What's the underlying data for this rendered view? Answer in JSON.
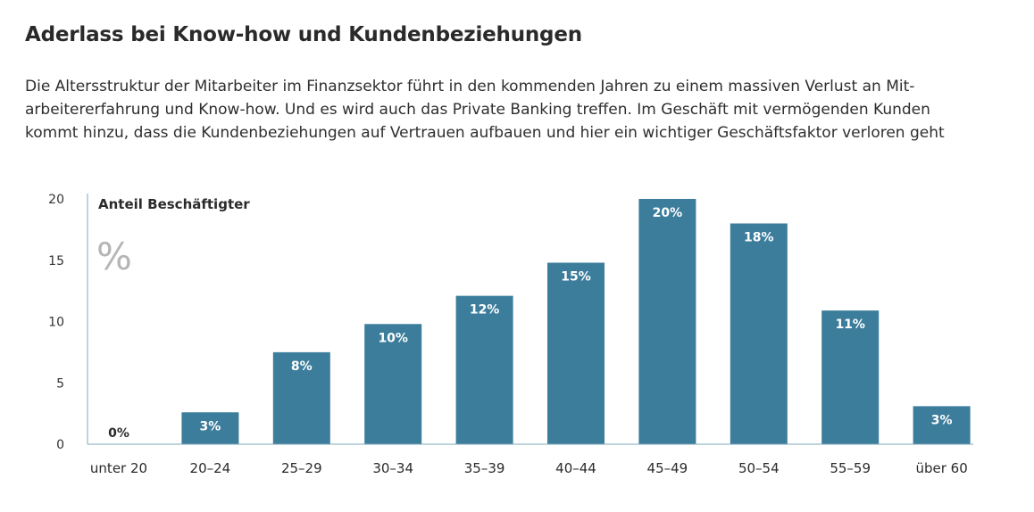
{
  "header": {
    "title": "Aderlass bei Know-how und Kundenbeziehungen",
    "subtitle_lines": [
      "Die Altersstruktur der Mitarbeiter im Finanzsektor führt in den kommenden Jahren zu einem massiven Verlust an Mit-",
      "arbeitererfahrung und Know-how. Und es wird auch das Private Banking treffen. Im Geschäft mit vermögenden Kunden",
      "kommt hinzu, dass die Kundenbeziehungen auf Vertrauen aufbauen und hier ein wichtiger Geschäftsfaktor verloren geht"
    ]
  },
  "colors": {
    "bar": "#3c7d9c",
    "axis": "#7fa7bb",
    "label_inside": "#ffffff",
    "label_outside": "#2b2b2b"
  },
  "chart_data": {
    "type": "bar",
    "ylabel": "Anteil Beschäftigter",
    "unit": "%",
    "categories": [
      "unter 20",
      "20–24",
      "25–29",
      "30–34",
      "35–39",
      "40–44",
      "45–49",
      "50–54",
      "55–59",
      "über 60"
    ],
    "values": [
      0,
      2.6,
      7.5,
      9.8,
      12.1,
      14.8,
      20,
      18,
      10.9,
      3.1
    ],
    "data_labels": [
      "0%",
      "3%",
      "8%",
      "10%",
      "12%",
      "15%",
      "20%",
      "18%",
      "11%",
      "3%"
    ],
    "ylim": [
      0,
      20
    ],
    "yticks": [
      0,
      5,
      10,
      15,
      20
    ],
    "grid": false,
    "legend": "none"
  }
}
